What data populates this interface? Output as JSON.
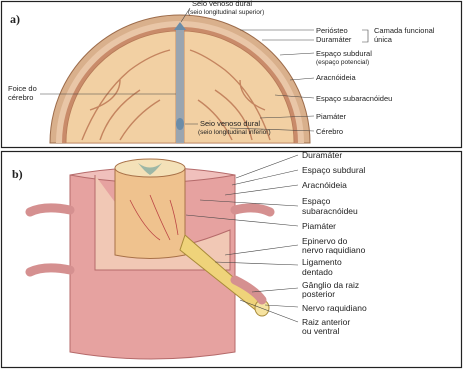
{
  "panel_a": {
    "label": "a)",
    "labels": [
      "Seio venoso dural",
      "(seio longitudinal superior)",
      "Periósteo",
      "Camada funcional",
      "única",
      "Duramáter",
      "Espaço subdural",
      "(espaço potencial)",
      "Aracnóideia",
      "Espaço subaracnóideu",
      "Foice do",
      "cérebro",
      "Piamáter",
      "Seio venoso dural",
      "(seio longitudinal inferior)",
      "Cérebro"
    ]
  },
  "panel_b": {
    "label": "b)",
    "labels": [
      "Duramáter",
      "Espaço subdural",
      "Aracnóideia",
      "Espaço",
      "subaracnóideu",
      "Piamáter",
      "Epinervo do",
      "nervo raquidiano",
      "Ligamento",
      "dentado",
      "Gânglio da raiz",
      "posterior",
      "Nervo raquidiano",
      "Raiz anterior",
      "ou ventral"
    ]
  }
}
